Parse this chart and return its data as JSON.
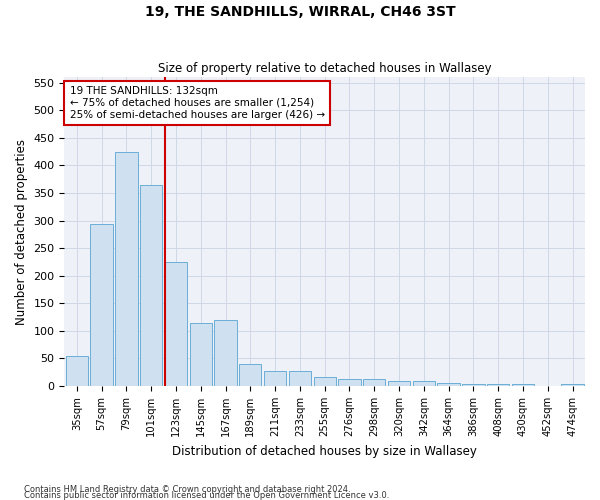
{
  "title": "19, THE SANDHILLS, WIRRAL, CH46 3ST",
  "subtitle": "Size of property relative to detached houses in Wallasey",
  "xlabel": "Distribution of detached houses by size in Wallasey",
  "ylabel": "Number of detached properties",
  "categories": [
    "35sqm",
    "57sqm",
    "79sqm",
    "101sqm",
    "123sqm",
    "145sqm",
    "167sqm",
    "189sqm",
    "211sqm",
    "233sqm",
    "255sqm",
    "276sqm",
    "298sqm",
    "320sqm",
    "342sqm",
    "364sqm",
    "386sqm",
    "408sqm",
    "430sqm",
    "452sqm",
    "474sqm"
  ],
  "values": [
    55,
    293,
    425,
    365,
    225,
    115,
    120,
    40,
    28,
    28,
    17,
    12,
    12,
    10,
    10,
    5,
    4,
    4,
    4,
    1,
    4
  ],
  "bar_color": "#cfe0f0",
  "bar_edge_color": "#6aaed6",
  "vline_color": "#cc0000",
  "annotation_box_edge": "#cc0000",
  "grid_color": "#d0d8e8",
  "background_color": "#eef2f8",
  "ylim": [
    0,
    560
  ],
  "yticks": [
    0,
    50,
    100,
    150,
    200,
    250,
    300,
    350,
    400,
    450,
    500,
    550
  ],
  "annotation_line1": "19 THE SANDHILLS: 132sqm",
  "annotation_line2": "← 75% of detached houses are smaller (1,254)",
  "annotation_line3": "25% of semi-detached houses are larger (426) →",
  "footer1": "Contains HM Land Registry data © Crown copyright and database right 2024.",
  "footer2": "Contains public sector information licensed under the Open Government Licence v3.0.",
  "vline_x": 3.57
}
